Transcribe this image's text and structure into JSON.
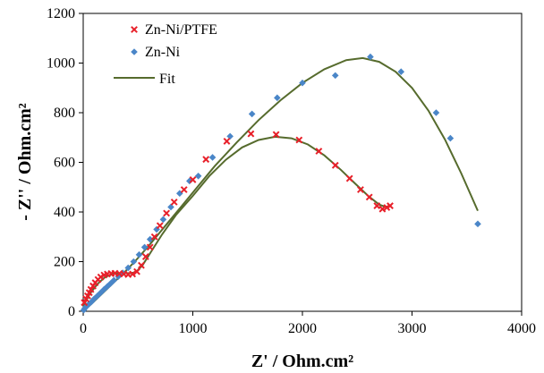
{
  "chart_data": {
    "type": "scatter",
    "xlabel": "Z' / Ohm.cm²",
    "ylabel": "- Z'' / Ohm.cm²",
    "xlim": [
      0,
      4000
    ],
    "ylim": [
      0,
      1200
    ],
    "xticks": [
      0,
      1000,
      2000,
      3000,
      4000
    ],
    "yticks": [
      0,
      200,
      400,
      600,
      800,
      1000,
      1200
    ],
    "grid": false,
    "legend_position": "top-left",
    "series": [
      {
        "name": "Zn-Ni/PTFE",
        "marker": "x",
        "color": "#e8202a",
        "points": [
          [
            10,
            35
          ],
          [
            25,
            50
          ],
          [
            40,
            62
          ],
          [
            55,
            75
          ],
          [
            70,
            88
          ],
          [
            90,
            102
          ],
          [
            110,
            115
          ],
          [
            135,
            128
          ],
          [
            160,
            138
          ],
          [
            190,
            146
          ],
          [
            220,
            150
          ],
          [
            255,
            152
          ],
          [
            290,
            153
          ],
          [
            330,
            152
          ],
          [
            370,
            150
          ],
          [
            410,
            148
          ],
          [
            450,
            150
          ],
          [
            490,
            160
          ],
          [
            530,
            185
          ],
          [
            570,
            220
          ],
          [
            610,
            258
          ],
          [
            650,
            300
          ],
          [
            700,
            345
          ],
          [
            760,
            395
          ],
          [
            830,
            440
          ],
          [
            920,
            490
          ],
          [
            1000,
            530
          ],
          [
            1120,
            612
          ],
          [
            1310,
            685
          ],
          [
            1530,
            715
          ],
          [
            1760,
            712
          ],
          [
            1970,
            690
          ],
          [
            2150,
            645
          ],
          [
            2300,
            588
          ],
          [
            2430,
            535
          ],
          [
            2530,
            490
          ],
          [
            2610,
            460
          ],
          [
            2680,
            425
          ],
          [
            2730,
            412
          ],
          [
            2770,
            418
          ],
          [
            2800,
            425
          ]
        ]
      },
      {
        "name": "Zn-Ni",
        "marker": "diamond",
        "color": "#4a86c8",
        "points": [
          [
            5,
            5
          ],
          [
            15,
            12
          ],
          [
            30,
            20
          ],
          [
            50,
            28
          ],
          [
            75,
            38
          ],
          [
            100,
            50
          ],
          [
            130,
            62
          ],
          [
            160,
            75
          ],
          [
            190,
            88
          ],
          [
            220,
            100
          ],
          [
            250,
            112
          ],
          [
            280,
            125
          ],
          [
            320,
            140
          ],
          [
            360,
            155
          ],
          [
            410,
            175
          ],
          [
            460,
            200
          ],
          [
            510,
            228
          ],
          [
            560,
            258
          ],
          [
            610,
            290
          ],
          [
            670,
            330
          ],
          [
            730,
            370
          ],
          [
            800,
            420
          ],
          [
            880,
            475
          ],
          [
            970,
            525
          ],
          [
            1050,
            545
          ],
          [
            1180,
            620
          ],
          [
            1340,
            705
          ],
          [
            1540,
            795
          ],
          [
            1770,
            860
          ],
          [
            2000,
            920
          ],
          [
            2300,
            950
          ],
          [
            2620,
            1025
          ],
          [
            2900,
            965
          ],
          [
            3220,
            800
          ],
          [
            3350,
            697
          ],
          [
            3600,
            352
          ]
        ]
      },
      {
        "name": "Fit",
        "marker": "line",
        "color": "#566b2d",
        "curves": [
          [
            [
              0,
              20
            ],
            [
              60,
              70
            ],
            [
              130,
              110
            ],
            [
              200,
              138
            ],
            [
              280,
              152
            ],
            [
              360,
              154
            ],
            [
              430,
              153
            ],
            [
              480,
              158
            ],
            [
              540,
              185
            ],
            [
              620,
              240
            ],
            [
              720,
              310
            ],
            [
              850,
              390
            ],
            [
              1000,
              465
            ],
            [
              1150,
              545
            ],
            [
              1300,
              610
            ],
            [
              1450,
              660
            ],
            [
              1600,
              690
            ],
            [
              1750,
              703
            ],
            [
              1900,
              697
            ],
            [
              2050,
              672
            ],
            [
              2200,
              628
            ],
            [
              2350,
              570
            ],
            [
              2480,
              515
            ],
            [
              2600,
              465
            ],
            [
              2700,
              430
            ],
            [
              2760,
              420
            ],
            [
              2800,
              425
            ]
          ],
          [
            [
              0,
              0
            ],
            [
              80,
              32
            ],
            [
              170,
              70
            ],
            [
              260,
              108
            ],
            [
              360,
              150
            ],
            [
              470,
              200
            ],
            [
              600,
              265
            ],
            [
              750,
              345
            ],
            [
              900,
              425
            ],
            [
              1050,
              505
            ],
            [
              1200,
              585
            ],
            [
              1400,
              680
            ],
            [
              1600,
              770
            ],
            [
              1800,
              850
            ],
            [
              2000,
              920
            ],
            [
              2200,
              975
            ],
            [
              2400,
              1012
            ],
            [
              2550,
              1020
            ],
            [
              2700,
              1005
            ],
            [
              2850,
              965
            ],
            [
              3000,
              900
            ],
            [
              3150,
              808
            ],
            [
              3300,
              692
            ],
            [
              3450,
              555
            ],
            [
              3600,
              405
            ]
          ]
        ]
      }
    ]
  }
}
